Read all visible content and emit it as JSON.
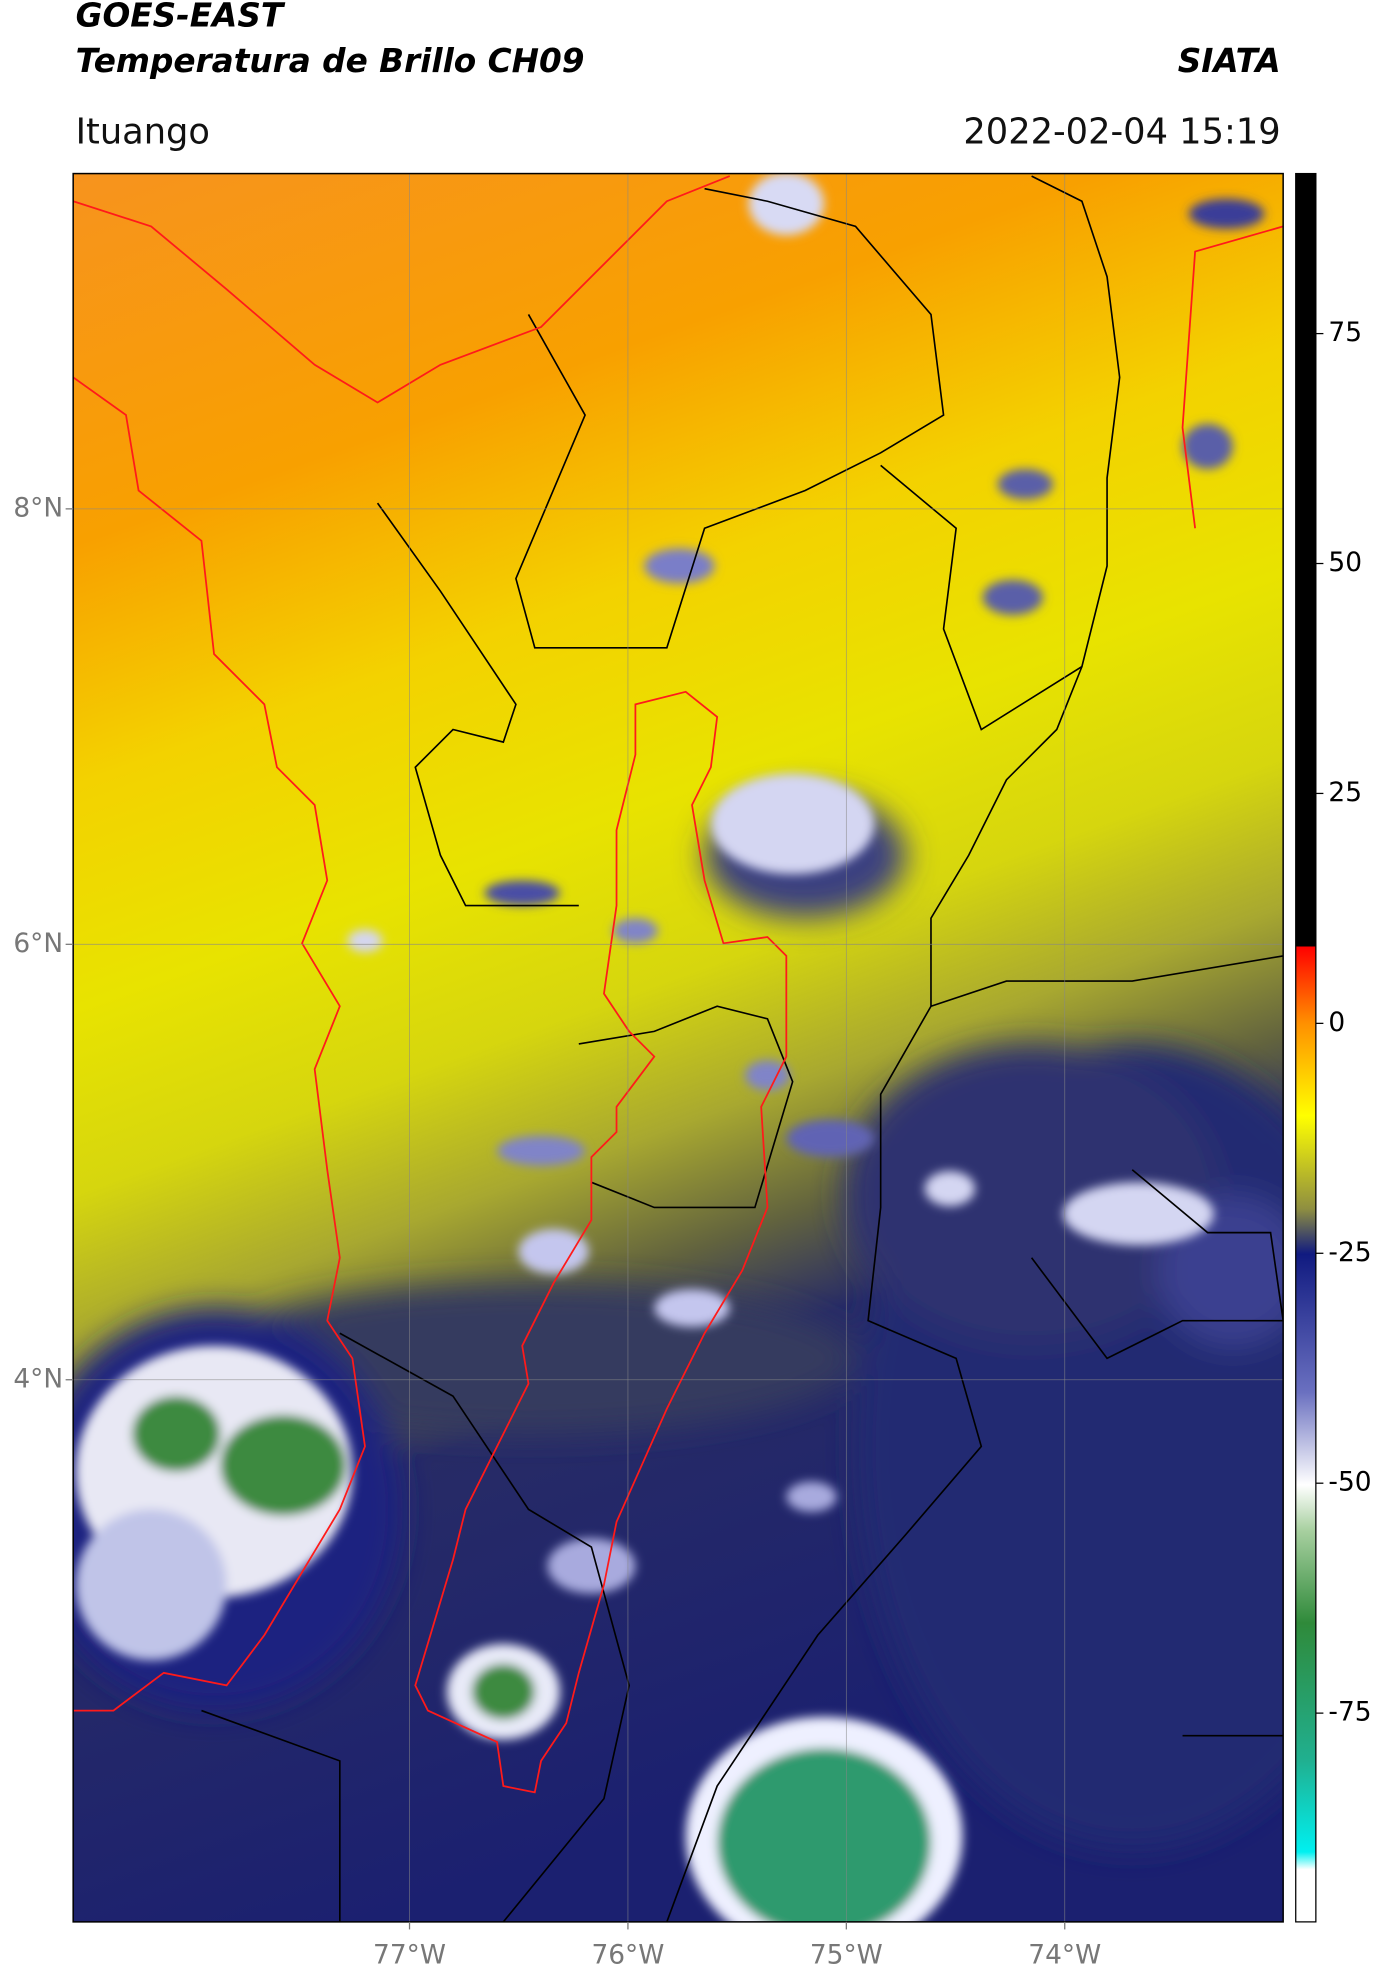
{
  "header": {
    "title": "GOES-EAST",
    "subtitle": "Temperatura de Brillo CH09",
    "source": "SIATA",
    "region": "Ituango",
    "timestamp": "2022-02-04 15:19"
  },
  "map": {
    "xlim": [
      -78.54,
      -73.0
    ],
    "ylim": [
      1.51,
      9.54
    ],
    "xticks": [
      {
        "value": -77,
        "label": "77°W"
      },
      {
        "value": -76,
        "label": "76°W"
      },
      {
        "value": -75,
        "label": "75°W"
      },
      {
        "value": -74,
        "label": "74°W"
      }
    ],
    "yticks": [
      {
        "value": 8,
        "label": "8°N"
      },
      {
        "value": 6,
        "label": "6°N"
      },
      {
        "value": 4,
        "label": "4°N"
      }
    ]
  },
  "colorbar": {
    "lim": [
      -97.7,
      92.4
    ],
    "ticks": [
      75,
      50,
      25,
      0,
      -25,
      -50,
      -75
    ]
  }
}
